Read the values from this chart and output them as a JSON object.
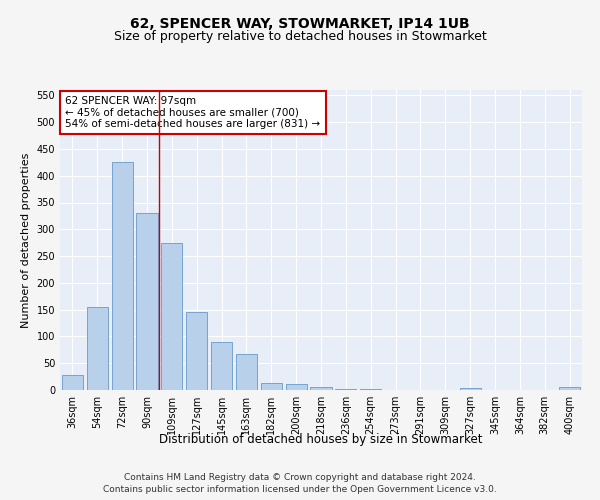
{
  "title": "62, SPENCER WAY, STOWMARKET, IP14 1UB",
  "subtitle": "Size of property relative to detached houses in Stowmarket",
  "xlabel": "Distribution of detached houses by size in Stowmarket",
  "ylabel": "Number of detached properties",
  "footer_line1": "Contains HM Land Registry data © Crown copyright and database right 2024.",
  "footer_line2": "Contains public sector information licensed under the Open Government Licence v3.0.",
  "categories": [
    "36sqm",
    "54sqm",
    "72sqm",
    "90sqm",
    "109sqm",
    "127sqm",
    "145sqm",
    "163sqm",
    "182sqm",
    "200sqm",
    "218sqm",
    "236sqm",
    "254sqm",
    "273sqm",
    "291sqm",
    "309sqm",
    "327sqm",
    "345sqm",
    "364sqm",
    "382sqm",
    "400sqm"
  ],
  "values": [
    28,
    155,
    425,
    330,
    275,
    145,
    90,
    68,
    14,
    11,
    5,
    1,
    1,
    0,
    0,
    0,
    3,
    0,
    0,
    0,
    5
  ],
  "bar_color": "#b8d0ea",
  "bar_edge_color": "#6699cc",
  "vline_x": 3.5,
  "vline_color": "#cc0000",
  "annotation_text": "62 SPENCER WAY: 97sqm\n← 45% of detached houses are smaller (700)\n54% of semi-detached houses are larger (831) →",
  "annotation_box_facecolor": "#ffffff",
  "annotation_box_edgecolor": "#cc0000",
  "ylim": [
    0,
    560
  ],
  "yticks": [
    0,
    50,
    100,
    150,
    200,
    250,
    300,
    350,
    400,
    450,
    500,
    550
  ],
  "background_color": "#e8eef8",
  "grid_color": "#ffffff",
  "fig_facecolor": "#f5f5f5",
  "title_fontsize": 10,
  "subtitle_fontsize": 9,
  "xlabel_fontsize": 8.5,
  "ylabel_fontsize": 8,
  "tick_fontsize": 7,
  "annotation_fontsize": 7.5,
  "footer_fontsize": 6.5
}
